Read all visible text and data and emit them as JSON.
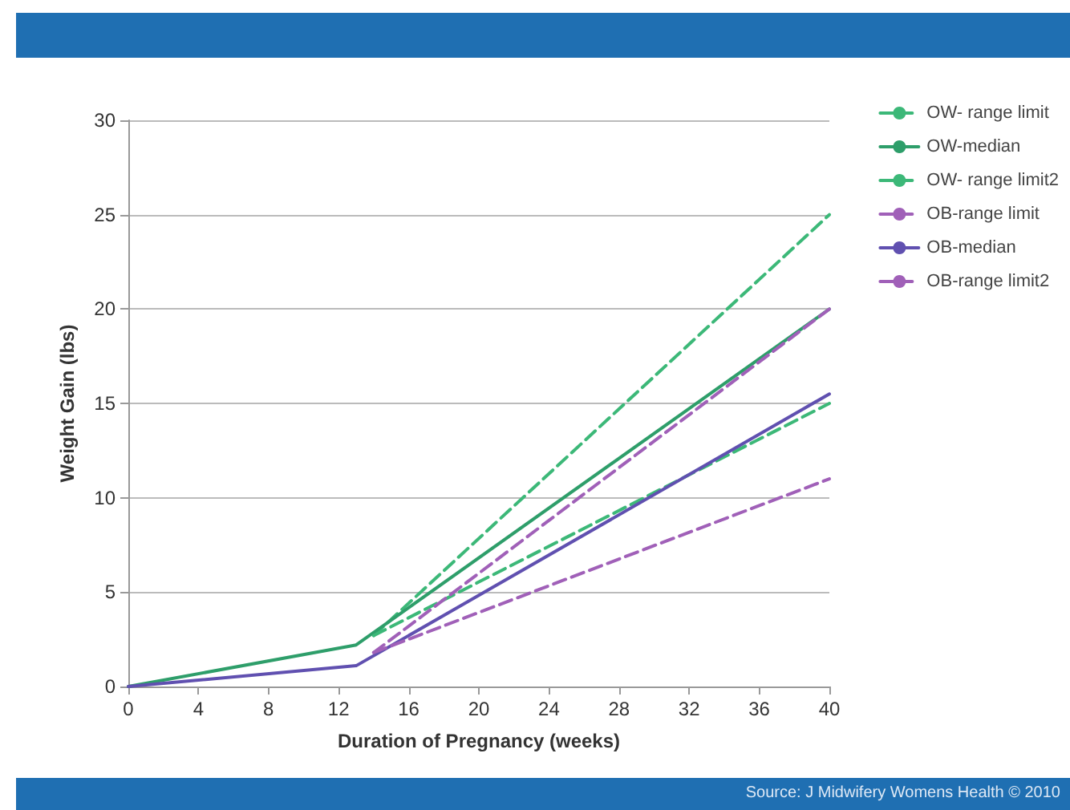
{
  "chart_data": {
    "type": "line",
    "xlabel": "Duration of Pregnancy (weeks)",
    "ylabel": "Weight Gain (lbs)",
    "xlim": [
      0,
      40
    ],
    "xticks": [
      0,
      4,
      8,
      12,
      16,
      20,
      24,
      28,
      32,
      36,
      40
    ],
    "ylim": [
      0,
      30
    ],
    "yticks": [
      0,
      5,
      10,
      15,
      20,
      25,
      30
    ],
    "grid": "y",
    "legend": "right",
    "marker": "none",
    "annotations": [
      "Source: J Midwifery Womens Health © 2010"
    ],
    "series": [
      {
        "name": "OW- range limit",
        "color": "#3cb878",
        "line_style": "dashed",
        "x": [
          14,
          40
        ],
        "values": [
          2.7,
          25
        ]
      },
      {
        "name": "OW-median",
        "color": "#2e9e6a",
        "line_style": "solid",
        "x": [
          0,
          13,
          40
        ],
        "values": [
          0,
          2.2,
          20
        ]
      },
      {
        "name": "OW- range limit2",
        "color": "#3cb878",
        "line_style": "dashed",
        "x": [
          14,
          40
        ],
        "values": [
          2.7,
          15
        ]
      },
      {
        "name": "OB-range limit",
        "color": "#a060b8",
        "line_style": "dashed",
        "x": [
          14,
          40
        ],
        "values": [
          1.8,
          20
        ]
      },
      {
        "name": "OB-median",
        "color": "#6050b0",
        "line_style": "solid",
        "x": [
          0,
          13,
          40
        ],
        "values": [
          0,
          1.1,
          15.5
        ]
      },
      {
        "name": "OB-range limit2",
        "color": "#a060b8",
        "line_style": "dashed",
        "x": [
          14,
          40
        ],
        "values": [
          1.8,
          11
        ]
      }
    ]
  }
}
